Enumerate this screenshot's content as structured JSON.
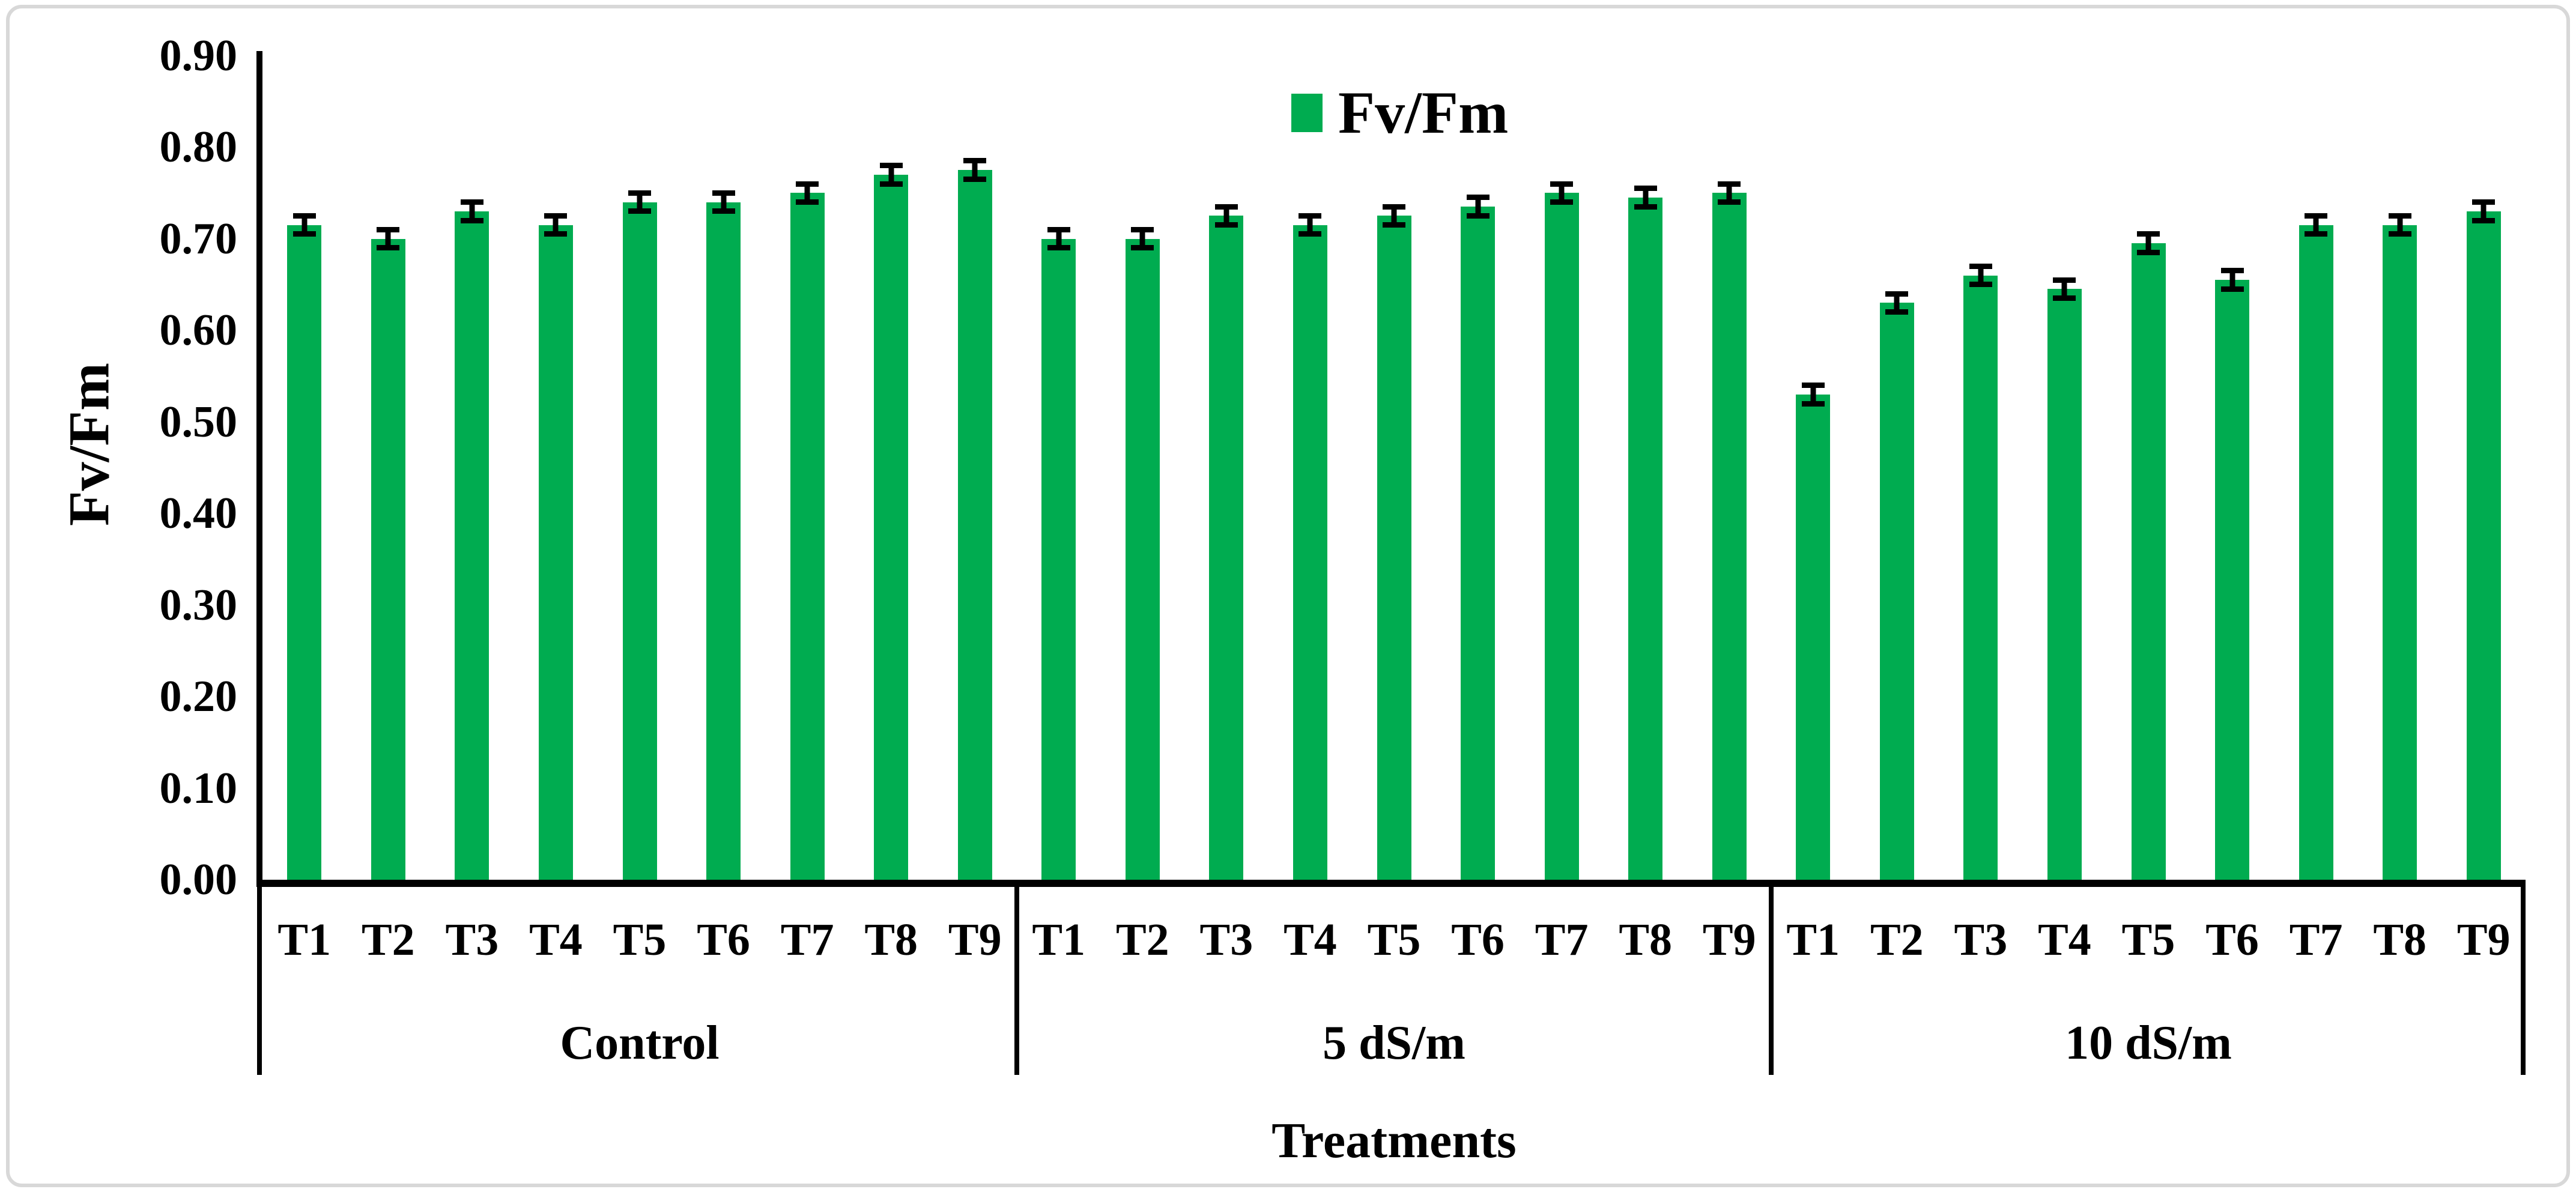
{
  "figure": {
    "background": "#FFFFFF",
    "border_color": "#D8D8D8",
    "axis_color": "#000000"
  },
  "chart_data": {
    "type": "bar",
    "title": "",
    "legend_label": "Fv/Fm",
    "ylabel": "Fv/Fm",
    "xlabel": "Treatments",
    "ylim": [
      0.0,
      0.9
    ],
    "ytick_step": 0.1,
    "ytick_labels": [
      "0.90",
      "0.80",
      "0.70",
      "0.60",
      "0.50",
      "0.40",
      "0.30",
      "0.20",
      "0.10",
      "0.00"
    ],
    "bar_color": "#00AC50",
    "error_bar_color": "#000000",
    "error_value": 0.01,
    "grid": false,
    "legend_position": "top-center",
    "groups": [
      {
        "label": "Control",
        "categories": [
          "T1",
          "T2",
          "T3",
          "T4",
          "T5",
          "T6",
          "T7",
          "T8",
          "T9"
        ],
        "values": [
          0.715,
          0.7,
          0.73,
          0.715,
          0.74,
          0.74,
          0.75,
          0.77,
          0.775
        ]
      },
      {
        "label": "5 dS/m",
        "categories": [
          "T1",
          "T2",
          "T3",
          "T4",
          "T5",
          "T6",
          "T7",
          "T8",
          "T9"
        ],
        "values": [
          0.7,
          0.7,
          0.725,
          0.715,
          0.725,
          0.735,
          0.75,
          0.745,
          0.75
        ]
      },
      {
        "label": "10 dS/m",
        "categories": [
          "T1",
          "T2",
          "T3",
          "T4",
          "T5",
          "T6",
          "T7",
          "T8",
          "T9"
        ],
        "values": [
          0.53,
          0.63,
          0.66,
          0.645,
          0.695,
          0.655,
          0.715,
          0.715,
          0.73
        ]
      }
    ]
  }
}
